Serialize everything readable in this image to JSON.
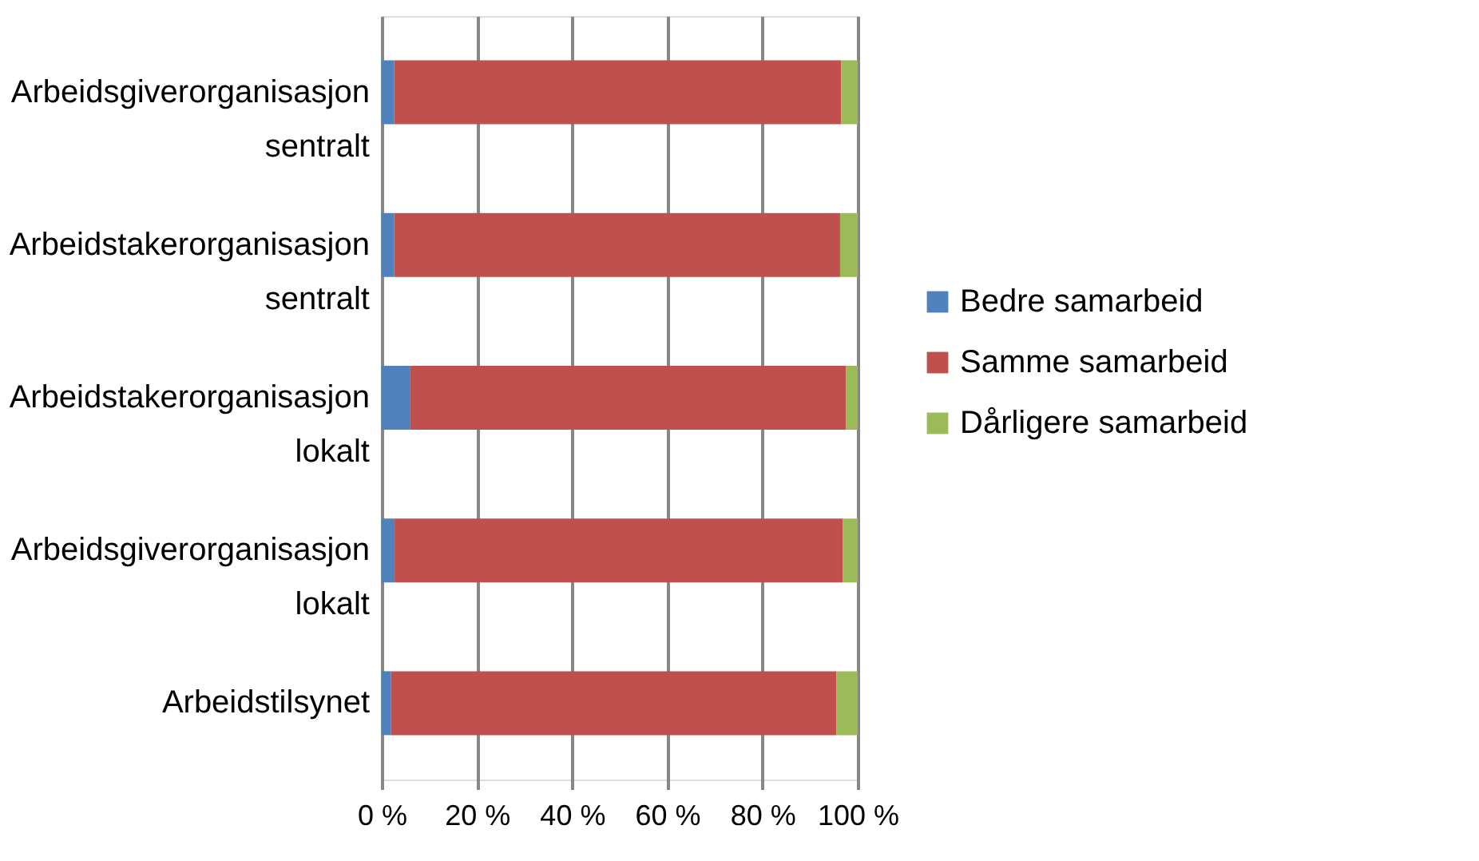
{
  "chart_data": {
    "type": "bar",
    "orientation": "horizontal",
    "stacked": true,
    "categories": [
      "Arbeidsgiverorganisasjon sentralt",
      "Arbeidstakerorganisasjon sentralt",
      "Arbeidstakerorganisasjon lokalt",
      "Arbeidsgiverorganisasjon lokalt",
      "Arbeidstilsynet"
    ],
    "series": [
      {
        "name": "Bedre  samarbeid",
        "color": "#4f81bd",
        "values": [
          2.6,
          2.6,
          5.9,
          2.7,
          1.9
        ]
      },
      {
        "name": "Samme samarbeid",
        "color": "#c0504d",
        "values": [
          93.9,
          93.7,
          91.6,
          94.2,
          93.6
        ]
      },
      {
        "name": "Dårligere samarbeid",
        "color": "#9bbb59",
        "values": [
          3.5,
          3.7,
          2.5,
          3.1,
          4.5
        ]
      }
    ],
    "xlim": [
      0,
      100
    ],
    "xticks": [
      {
        "value": 0,
        "label": "0 %"
      },
      {
        "value": 20,
        "label": "20 %"
      },
      {
        "value": 40,
        "label": "40 %"
      },
      {
        "value": 60,
        "label": "60 %"
      },
      {
        "value": 80,
        "label": "80 %"
      },
      {
        "value": 100,
        "label": "100 %"
      }
    ],
    "grid": "x",
    "legend": "right"
  }
}
